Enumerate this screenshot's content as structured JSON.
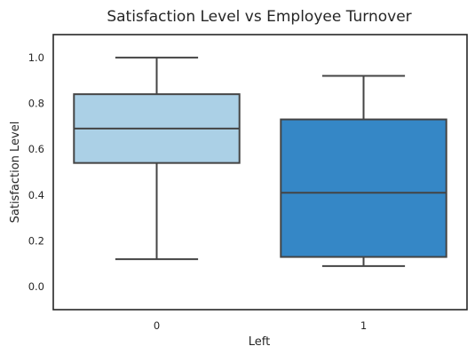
{
  "chart_data": {
    "type": "box",
    "title": "Satisfaction Level vs Employee Turnover",
    "xlabel": "Left",
    "ylabel": "Satisfaction Level",
    "ylim": [
      -0.1,
      1.1
    ],
    "yticks": [
      "0.0",
      "0.2",
      "0.4",
      "0.6",
      "0.8",
      "1.0"
    ],
    "categories": [
      "0",
      "1"
    ],
    "boxes": [
      {
        "category": "0",
        "whisker_low": 0.12,
        "q1": 0.54,
        "median": 0.69,
        "q3": 0.84,
        "whisker_high": 1.0,
        "color": "#abd0e6"
      },
      {
        "category": "1",
        "whisker_low": 0.09,
        "q1": 0.13,
        "median": 0.41,
        "q3": 0.73,
        "whisker_high": 0.92,
        "color": "#3587c6"
      }
    ],
    "grid": false,
    "frame_color": "#262626",
    "line_color": "#444444"
  }
}
